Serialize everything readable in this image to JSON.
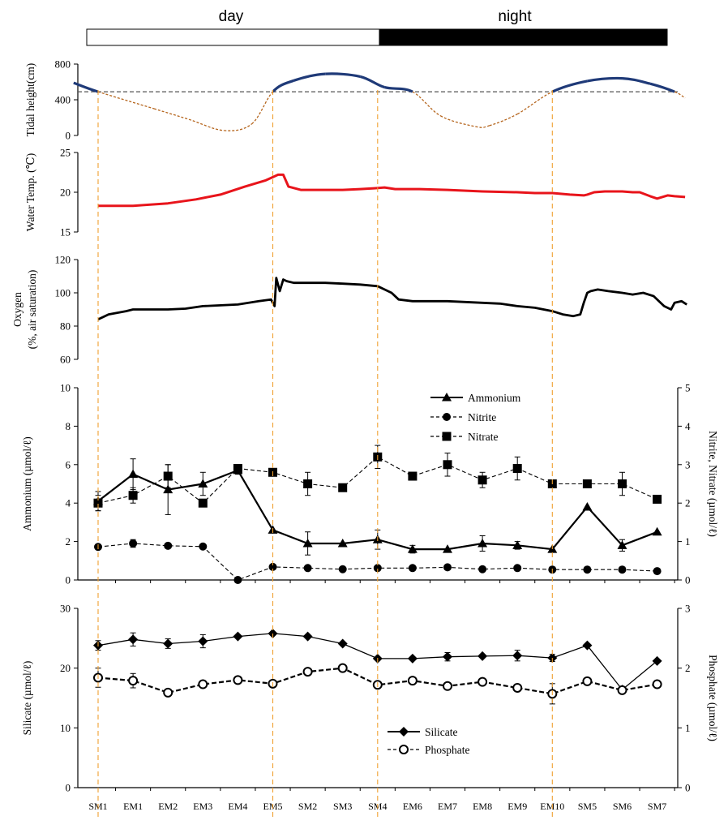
{
  "period_bar": {
    "day_label": "day",
    "night_label": "night"
  },
  "stations": [
    "SM1",
    "EM1",
    "EM2",
    "EM3",
    "EM4",
    "EM5",
    "SM2",
    "SM3",
    "SM4",
    "EM6",
    "EM7",
    "EM8",
    "EM9",
    "EM10",
    "SM5",
    "SM6",
    "SM7"
  ],
  "colors": {
    "tide_high": "#1f3a78",
    "tide_low": "#b5651d",
    "temperature": "#e8141b",
    "oxygen": "#000000",
    "guide_lines": "#f0a030",
    "ref_line": "#555555"
  },
  "chart_data": [
    {
      "id": "tide",
      "type": "line",
      "ylabel": "Tidal height(cm)",
      "ylim": [
        0,
        800
      ],
      "yticks": [
        "0",
        "400",
        "800"
      ],
      "reference_level": 490,
      "x": [
        -0.7,
        0,
        1.6,
        2.6,
        3.6,
        4.4,
        5,
        5.6,
        6.5,
        7.5,
        8.2,
        9,
        9.8,
        10.8,
        11.2,
        12,
        13,
        14,
        15,
        15.8,
        16.5,
        16.8
      ],
      "values": [
        590,
        490,
        300,
        180,
        55,
        130,
        490,
        615,
        690,
        660,
        540,
        490,
        220,
        100,
        110,
        240,
        490,
        610,
        640,
        580,
        490,
        420
      ]
    },
    {
      "id": "temperature",
      "type": "line",
      "ylabel": "Water Temp. (℃)",
      "ylim": [
        15,
        25
      ],
      "yticks": [
        "15",
        "20",
        "25"
      ],
      "x": [
        0,
        1,
        2,
        2.8,
        3.5,
        4.2,
        4.8,
        5,
        5.15,
        5.3,
        5.45,
        5.8,
        6.5,
        7,
        7.5,
        7.9,
        8.2,
        8.5,
        8.8,
        9.2,
        10,
        11,
        12,
        12.5,
        13,
        13.5,
        13.9,
        14,
        14.2,
        14.5,
        15,
        15.3,
        15.5,
        15.8,
        16,
        16.3,
        16.5,
        16.8
      ],
      "values": [
        18.3,
        18.3,
        18.6,
        19.1,
        19.7,
        20.7,
        21.5,
        21.9,
        22.2,
        22.2,
        20.7,
        20.3,
        20.3,
        20.3,
        20.4,
        20.5,
        20.6,
        20.4,
        20.4,
        20.4,
        20.3,
        20.1,
        20.0,
        19.9,
        19.9,
        19.7,
        19.6,
        19.7,
        20.0,
        20.1,
        20.1,
        20.0,
        20.0,
        19.5,
        19.2,
        19.6,
        19.5,
        19.4
      ]
    },
    {
      "id": "oxygen",
      "type": "line",
      "ylabel": "Oxygen (%, air saturation)",
      "ylabel_lines": [
        "Oxygen",
        "(%, air saturation)"
      ],
      "ylim": [
        60,
        120
      ],
      "yticks": [
        "60",
        "80",
        "100",
        "120"
      ],
      "x": [
        0,
        0.3,
        0.8,
        1,
        2,
        2.5,
        3,
        4,
        4.6,
        4.95,
        5.05,
        5.1,
        5.2,
        5.3,
        5.4,
        5.6,
        6,
        6.5,
        7,
        7.5,
        8,
        8.2,
        8.4,
        8.6,
        9,
        10,
        11,
        11.5,
        12,
        12.5,
        13,
        13.3,
        13.6,
        13.8,
        13.9,
        14,
        14.1,
        14.3,
        14.6,
        15,
        15.3,
        15.6,
        15.9,
        16.2,
        16.4,
        16.5,
        16.7,
        16.85
      ],
      "values": [
        84,
        87,
        89,
        90,
        90,
        90.5,
        92,
        93,
        95,
        96,
        92,
        109,
        101,
        108,
        107,
        106,
        106,
        106,
        105.5,
        105,
        104,
        102,
        100,
        96,
        95,
        95,
        94,
        93.5,
        92,
        91,
        89,
        87,
        86,
        87,
        94,
        100,
        101,
        102,
        101,
        100,
        99,
        100,
        98,
        92,
        90,
        94,
        95,
        93
      ]
    },
    {
      "id": "nutrients",
      "type": "line",
      "categories": [
        "SM1",
        "EM1",
        "EM2",
        "EM3",
        "EM4",
        "EM5",
        "SM2",
        "SM3",
        "SM4",
        "EM6",
        "EM7",
        "EM8",
        "EM9",
        "EM10",
        "SM5",
        "SM6",
        "SM7"
      ],
      "ylabel": "Ammonium (µmol/ℓ)",
      "y2label": "Nitrite, Nitrate (µmol/ℓ)",
      "ylim": [
        0,
        10
      ],
      "y2lim": [
        0,
        5
      ],
      "yticks": [
        "0",
        "2",
        "4",
        "6",
        "8",
        "10"
      ],
      "y2ticks": [
        "0",
        "1",
        "2",
        "3",
        "4",
        "5"
      ],
      "series": [
        {
          "name": "Ammonium",
          "axis": "left",
          "marker": "triangle",
          "line": "solid",
          "values": [
            4.1,
            5.5,
            4.7,
            5.0,
            5.7,
            2.6,
            1.9,
            1.9,
            2.1,
            1.6,
            1.6,
            1.9,
            1.8,
            1.6,
            3.8,
            1.8,
            2.5
          ],
          "errors": [
            0.5,
            0.8,
            1.3,
            0.6,
            0.2,
            0,
            0.6,
            0,
            0.5,
            0.2,
            0,
            0.4,
            0.2,
            0,
            0,
            0.3,
            0
          ]
        },
        {
          "name": "Nitrite",
          "axis": "right",
          "marker": "circle",
          "line": "dashed",
          "values": [
            0.86,
            0.95,
            0.89,
            0.87,
            0.0,
            0.34,
            0.31,
            0.28,
            0.31,
            0.31,
            0.33,
            0.28,
            0.31,
            0.27,
            0.27,
            0.27,
            0.23
          ],
          "errors": [
            0,
            0.1,
            0,
            0,
            0,
            0,
            0,
            0,
            0,
            0,
            0,
            0,
            0,
            0,
            0,
            0,
            0
          ]
        },
        {
          "name": "Nitrate",
          "axis": "right",
          "marker": "square",
          "line": "dashed",
          "values": [
            2.0,
            2.2,
            2.7,
            2.0,
            2.9,
            2.8,
            2.5,
            2.4,
            3.2,
            2.7,
            3.0,
            2.6,
            2.9,
            2.5,
            2.5,
            2.5,
            2.1
          ],
          "errors": [
            0.2,
            0.2,
            0.3,
            0.1,
            0,
            0,
            0.3,
            0,
            0.3,
            0,
            0.3,
            0.2,
            0.3,
            0,
            0,
            0.3,
            0
          ]
        }
      ],
      "legend": [
        "Ammonium",
        "Nitrite",
        "Nitrate"
      ],
      "legend_position": "top-center"
    },
    {
      "id": "silicate_phosphate",
      "type": "line",
      "categories": [
        "SM1",
        "EM1",
        "EM2",
        "EM3",
        "EM4",
        "EM5",
        "SM2",
        "SM3",
        "SM4",
        "EM6",
        "EM7",
        "EM8",
        "EM9",
        "EM10",
        "SM5",
        "SM6",
        "SM7"
      ],
      "ylabel": "Silicate (µmol/ℓ)",
      "y2label": "Phosphate (µmol/ℓ)",
      "ylim": [
        0,
        30
      ],
      "y2lim": [
        0,
        3
      ],
      "yticks": [
        "0",
        "10",
        "20",
        "30"
      ],
      "y2ticks": [
        "0",
        "1",
        "2",
        "3"
      ],
      "series": [
        {
          "name": "Silicate",
          "axis": "left",
          "marker": "diamond",
          "line": "solid",
          "values": [
            23.8,
            24.8,
            24.1,
            24.5,
            25.3,
            25.8,
            25.3,
            24.1,
            21.6,
            21.6,
            21.9,
            22.0,
            22.1,
            21.7,
            23.8,
            16.4,
            21.2
          ],
          "errors": [
            0.8,
            1.1,
            0.8,
            1.1,
            0,
            0,
            0,
            0,
            0,
            0,
            0.7,
            0,
            0.9,
            0.6,
            0,
            0,
            0
          ]
        },
        {
          "name": "Phosphate",
          "axis": "right",
          "marker": "open-circle",
          "line": "dashed",
          "values": [
            1.84,
            1.79,
            1.59,
            1.73,
            1.8,
            1.74,
            1.94,
            2.0,
            1.72,
            1.79,
            1.7,
            1.77,
            1.67,
            1.57,
            1.78,
            1.63,
            1.73
          ],
          "errors": [
            0.16,
            0.12,
            0,
            0,
            0,
            0,
            0,
            0,
            0,
            0,
            0,
            0,
            0,
            0.17,
            0,
            0,
            0
          ]
        }
      ],
      "legend": [
        "Silicate",
        "Phosphate"
      ],
      "legend_position": "bottom-center"
    }
  ]
}
